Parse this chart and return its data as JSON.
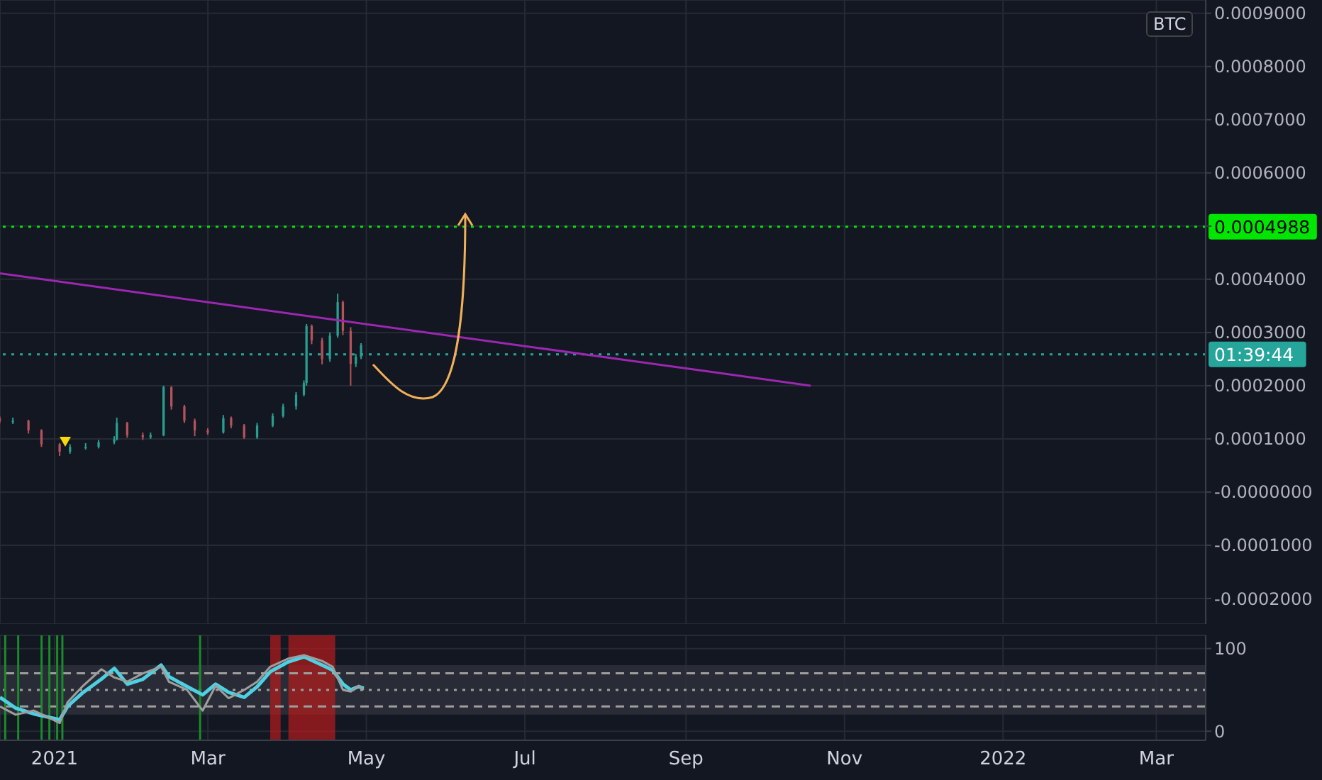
{
  "chart_data": [
    {
      "type": "candlestick",
      "x": [
        "2020-12-11",
        "2020-12-16",
        "2020-12-22",
        "2020-12-27",
        "2021-01-03",
        "2021-01-07",
        "2021-01-13",
        "2021-01-18",
        "2021-01-24",
        "2021-01-25",
        "2021-01-29",
        "2021-02-04",
        "2021-02-07",
        "2021-02-12",
        "2021-02-15",
        "2021-02-20",
        "2021-02-24",
        "2021-03-01",
        "2021-03-07",
        "2021-03-10",
        "2021-03-15",
        "2021-03-20",
        "2021-03-26",
        "2021-03-30",
        "2021-04-04",
        "2021-04-07",
        "2021-04-08",
        "2021-04-10",
        "2021-04-14",
        "2021-04-17",
        "2021-04-20",
        "2021-04-22",
        "2021-04-25",
        "2021-04-27",
        "2021-04-29"
      ],
      "ohlc": [
        [
          0.000138,
          0.000142,
          0.00013,
          0.000134
        ],
        [
          0.000134,
          0.00014,
          0.000128,
          0.000134
        ],
        [
          0.000134,
          0.000136,
          0.00011,
          0.000116
        ],
        [
          0.000116,
          0.000118,
          8.5e-05,
          9e-05
        ],
        [
          9e-05,
          9.2e-05,
          6.8e-05,
          7.6e-05
        ],
        [
          7.6e-05,
          9e-05,
          7.2e-05,
          8.5e-05
        ],
        [
          8.5e-05,
          9.2e-05,
          8e-05,
          8.5e-05
        ],
        [
          8.5e-05,
          9.8e-05,
          8.2e-05,
          9.4e-05
        ],
        [
          9.4e-05,
          0.000105,
          9e-05,
          9.9e-05
        ],
        [
          9.9e-05,
          0.00014,
          9.7e-05,
          0.00013
        ],
        [
          0.00013,
          0.000132,
          0.000102,
          0.000107
        ],
        [
          0.000107,
          0.000112,
          9.8e-05,
          0.000103
        ],
        [
          0.000103,
          0.000112,
          0.0001,
          0.000107
        ],
        [
          0.000107,
          0.0002,
          0.000105,
          0.000197
        ],
        [
          0.000197,
          0.000199,
          0.000155,
          0.000161
        ],
        [
          0.000161,
          0.000164,
          0.00013,
          0.000134
        ],
        [
          0.000134,
          0.000138,
          0.000105,
          0.000116
        ],
        [
          0.000116,
          0.00012,
          0.000108,
          0.000112
        ],
        [
          0.000112,
          0.000145,
          0.00011,
          0.000139
        ],
        [
          0.000139,
          0.000142,
          0.00012,
          0.000125
        ],
        [
          0.000125,
          0.000128,
          0.0001,
          0.000103
        ],
        [
          0.000103,
          0.00013,
          0.0001,
          0.000125
        ],
        [
          0.000125,
          0.000148,
          0.000122,
          0.000143
        ],
        [
          0.000143,
          0.000166,
          0.00014,
          0.000161
        ],
        [
          0.000161,
          0.000188,
          0.000155,
          0.000183
        ],
        [
          0.000183,
          0.00021,
          0.00018,
          0.000205
        ],
        [
          0.000205,
          0.000316,
          0.0002,
          0.000312
        ],
        [
          0.000312,
          0.000315,
          0.000278,
          0.000285
        ],
        [
          0.000285,
          0.00029,
          0.00024,
          0.00025
        ],
        [
          0.00025,
          0.0003,
          0.000245,
          0.000294
        ],
        [
          0.000294,
          0.000373,
          0.00029,
          0.000357
        ],
        [
          0.000357,
          0.00036,
          0.000295,
          0.000303
        ],
        [
          0.000303,
          0.00031,
          0.0002,
          0.000241
        ],
        [
          0.000241,
          0.00026,
          0.000235,
          0.000254
        ],
        [
          0.000254,
          0.00028,
          0.00025,
          0.000276
        ]
      ],
      "colors": [
        "#b5525a",
        "#2a9d8f",
        "#b5525a",
        "#b5525a",
        "#b5525a",
        "#2a9d8f",
        "#2a9d8f",
        "#2a9d8f",
        "#2a9d8f",
        "#2a9d8f",
        "#b5525a",
        "#b5525a",
        "#2a9d8f",
        "#2a9d8f",
        "#b5525a",
        "#b5525a",
        "#b5525a",
        "#b5525a",
        "#2a9d8f",
        "#b5525a",
        "#b5525a",
        "#2a9d8f",
        "#2a9d8f",
        "#2a9d8f",
        "#2a9d8f",
        "#2a9d8f",
        "#2a9d8f",
        "#b5525a",
        "#b5525a",
        "#2a9d8f",
        "#2a9d8f",
        "#b5525a",
        "#b5525a",
        "#2a9d8f",
        "#2a9d8f"
      ],
      "series": [
        {
          "type": "line",
          "color": "#9c27b0",
          "x": [
            "2020-12-11",
            "2021-10-19"
          ],
          "values": [
            0.000411,
            0.0002
          ]
        }
      ],
      "marker": "none",
      "xlim": [
        "2020-12-11",
        "2022-03-20"
      ],
      "xticks": [
        {
          "value": "2021-01-01",
          "label": null
        },
        {
          "value": "2021-03-01",
          "label": null
        },
        {
          "value": "2021-05-01",
          "label": null
        },
        {
          "value": "2021-07-01",
          "label": null
        },
        {
          "value": "2021-09-01",
          "label": null
        },
        {
          "value": "2021-11-01",
          "label": null
        },
        {
          "value": "2022-01-01",
          "label": null
        },
        {
          "value": "2022-03-01",
          "label": null
        }
      ],
      "ylim": [
        -0.000248,
        0.000925
      ],
      "yticks": [
        {
          "value": -0.0002,
          "label": "-0.0002000"
        },
        {
          "value": -0.0001,
          "label": "-0.0001000"
        },
        {
          "value": 0,
          "label": "-0.0000000"
        },
        {
          "value": 0.0001,
          "label": "0.0001000"
        },
        {
          "value": 0.0002,
          "label": "0.0002000"
        },
        {
          "value": 0.0003,
          "label": "0.0003000"
        },
        {
          "value": 0.0004,
          "label": "0.0004000"
        },
        {
          "value": 0.0005,
          "label": null
        },
        {
          "value": 0.0006,
          "label": "0.0006000"
        },
        {
          "value": 0.0007,
          "label": "0.0007000"
        },
        {
          "value": 0.0008,
          "label": "0.0008000"
        },
        {
          "value": 0.0009,
          "label": "0.0009000"
        }
      ],
      "ref_lines": [
        {
          "axis": "y",
          "value": 0.0004988,
          "label": "0.0004988",
          "color": "#00e600",
          "line_style": "dotted"
        },
        {
          "axis": "y",
          "value": 0.000259,
          "color": "#26a69a",
          "line_style": "dotted"
        }
      ],
      "annotations": [
        "BTC",
        "01:39:44"
      ],
      "tick_labels": "y",
      "grid": true
    },
    {
      "type": "line",
      "series": [
        {
          "color": "#4dd0e1",
          "x": [
            "2020-12-11",
            "2020-12-17",
            "2020-12-24",
            "2021-01-03",
            "2021-01-06",
            "2021-01-12",
            "2021-01-19",
            "2021-01-24",
            "2021-01-29",
            "2021-02-04",
            "2021-02-11",
            "2021-02-14",
            "2021-02-21",
            "2021-02-27",
            "2021-03-04",
            "2021-03-09",
            "2021-03-15",
            "2021-03-20",
            "2021-03-25",
            "2021-04-01",
            "2021-04-07",
            "2021-04-14",
            "2021-04-18",
            "2021-04-22",
            "2021-04-25",
            "2021-04-28",
            "2021-04-30"
          ],
          "values": [
            41,
            28,
            21,
            14,
            30,
            47,
            63,
            76,
            57,
            63,
            80,
            66,
            54,
            44,
            57,
            47,
            41,
            54,
            72,
            84,
            90,
            80,
            74,
            57,
            50,
            54,
            52
          ]
        },
        {
          "color": "#9e9e9e",
          "x": [
            "2020-12-11",
            "2020-12-17",
            "2020-12-24",
            "2021-01-03",
            "2021-01-06",
            "2021-01-12",
            "2021-01-19",
            "2021-01-24",
            "2021-01-29",
            "2021-02-04",
            "2021-02-11",
            "2021-02-14",
            "2021-02-21",
            "2021-02-27",
            "2021-03-04",
            "2021-03-09",
            "2021-03-15",
            "2021-03-20",
            "2021-03-25",
            "2021-04-01",
            "2021-04-07",
            "2021-04-14",
            "2021-04-18",
            "2021-04-22",
            "2021-04-25",
            "2021-04-28",
            "2021-04-30"
          ],
          "values": [
            30,
            20,
            25,
            10,
            35,
            55,
            75,
            65,
            60,
            70,
            78,
            60,
            50,
            25,
            55,
            40,
            50,
            60,
            78,
            88,
            92,
            85,
            78,
            50,
            48,
            55,
            50
          ]
        }
      ],
      "marker": "none",
      "xlim": [
        "2020-12-11",
        "2022-03-20"
      ],
      "xticks": [
        {
          "value": "2021-01-01",
          "label": "2021"
        },
        {
          "value": "2021-03-01",
          "label": "Mar"
        },
        {
          "value": "2021-05-01",
          "label": "May"
        },
        {
          "value": "2021-07-01",
          "label": "Jul"
        },
        {
          "value": "2021-09-01",
          "label": "Sep"
        },
        {
          "value": "2021-11-01",
          "label": "Nov"
        },
        {
          "value": "2022-01-01",
          "label": "2022"
        },
        {
          "value": "2022-03-01",
          "label": "Mar"
        }
      ],
      "ylim": [
        -11,
        116
      ],
      "yticks": [
        0,
        100
      ],
      "bands": [
        {
          "axis": "y",
          "from": 20,
          "to": 80,
          "color": "#2f323c"
        },
        {
          "axis": "x",
          "from": "2021-03-25",
          "to": "2021-03-29",
          "color": "#b71c1c"
        },
        {
          "axis": "x",
          "from": "2021-04-01",
          "to": "2021-04-19",
          "color": "#b71c1c"
        }
      ],
      "ref_lines": [
        {
          "axis": "y",
          "value": 70,
          "color": "#9e9e9e",
          "line_style": "dashed"
        },
        {
          "axis": "y",
          "value": 50,
          "color": "#9e9e9e",
          "line_style": "dotted"
        },
        {
          "axis": "y",
          "value": 30,
          "color": "#9e9e9e",
          "line_style": "dashed"
        },
        {
          "axis": "x",
          "value": "2020-12-13",
          "color": "#1b8a2a"
        },
        {
          "axis": "x",
          "value": "2020-12-18",
          "color": "#1b8a2a"
        },
        {
          "axis": "x",
          "value": "2020-12-27",
          "color": "#1b8a2a"
        },
        {
          "axis": "x",
          "value": "2020-12-30",
          "color": "#1b8a2a"
        },
        {
          "axis": "x",
          "value": "2021-01-02",
          "color": "#1b8a2a"
        },
        {
          "axis": "x",
          "value": "2021-01-04",
          "color": "#1b8a2a"
        },
        {
          "axis": "x",
          "value": "2021-02-26",
          "color": "#1b8a2a"
        }
      ],
      "grid": true
    }
  ]
}
